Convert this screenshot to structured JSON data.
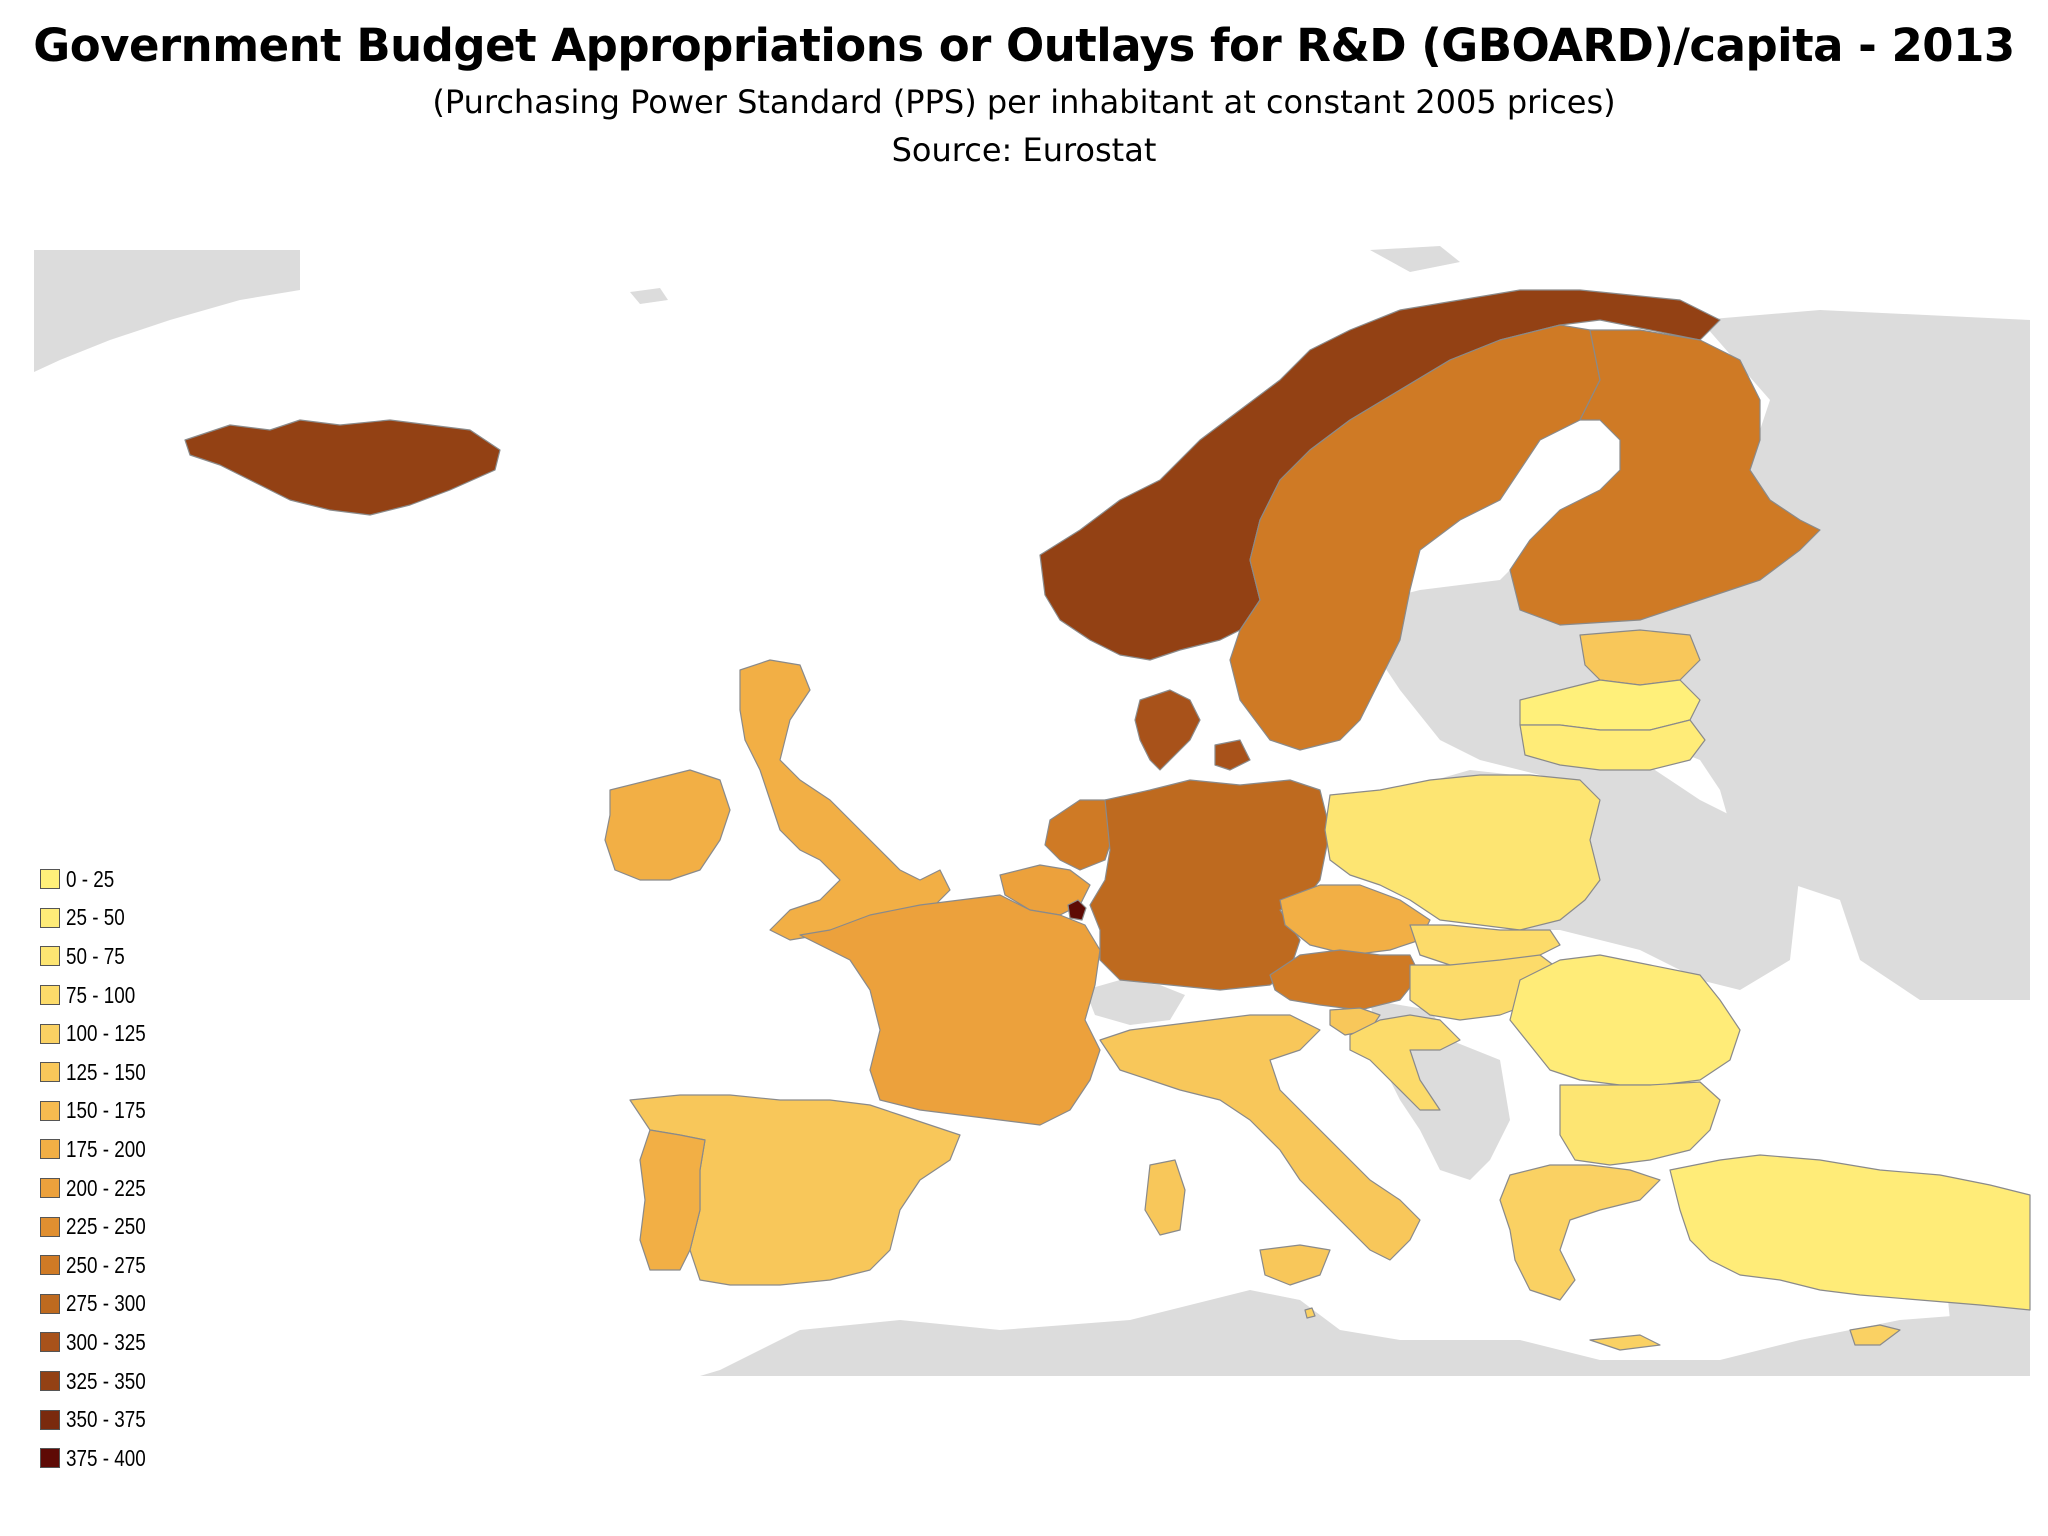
{
  "title": "Government Budget Appropriations or Outlays for R&D (GBOARD)/capita - 2013",
  "subtitle": "(Purchasing Power Standard (PPS) per inhabitant at constant 2005 prices)",
  "source": "Source: Eurostat",
  "colors": {
    "no_data": "#dcdcdc",
    "sea": "#ffffff",
    "border": "#8a8a8a"
  },
  "legend": [
    {
      "label": "0 - 25",
      "color": "#fff07a"
    },
    {
      "label": "25 - 50",
      "color": "#ffec78"
    },
    {
      "label": "50 - 75",
      "color": "#fde572"
    },
    {
      "label": "75 - 100",
      "color": "#fcdb6a"
    },
    {
      "label": "100 - 125",
      "color": "#fad163"
    },
    {
      "label": "125 - 150",
      "color": "#f8c75a"
    },
    {
      "label": "150 - 175",
      "color": "#f6bb50"
    },
    {
      "label": "175 - 200",
      "color": "#f2af45"
    },
    {
      "label": "200 - 225",
      "color": "#eca13c"
    },
    {
      "label": "225 - 250",
      "color": "#e08f30"
    },
    {
      "label": "250 - 275",
      "color": "#cf7a25"
    },
    {
      "label": "275 - 300",
      "color": "#be6a1f"
    },
    {
      "label": "300 - 325",
      "color": "#a8521a"
    },
    {
      "label": "325 - 350",
      "color": "#934114"
    },
    {
      "label": "350 - 375",
      "color": "#7a2a0e"
    },
    {
      "label": "375 - 400",
      "color": "#5e0a05"
    }
  ],
  "countries": [
    {
      "name": "Iceland",
      "class": "325 - 350"
    },
    {
      "name": "Norway",
      "class": "325 - 350"
    },
    {
      "name": "Sweden",
      "class": "250 - 275"
    },
    {
      "name": "Finland",
      "class": "250 - 275"
    },
    {
      "name": "Denmark",
      "class": "300 - 325"
    },
    {
      "name": "Estonia",
      "class": "125 - 150"
    },
    {
      "name": "Latvia",
      "class": "0 - 25"
    },
    {
      "name": "Lithuania",
      "class": "25 - 50"
    },
    {
      "name": "United Kingdom",
      "class": "175 - 200"
    },
    {
      "name": "Ireland",
      "class": "175 - 200"
    },
    {
      "name": "Netherlands",
      "class": "250 - 275"
    },
    {
      "name": "Belgium",
      "class": "200 - 225"
    },
    {
      "name": "Luxembourg",
      "class": "375 - 400"
    },
    {
      "name": "Germany",
      "class": "275 - 300"
    },
    {
      "name": "France",
      "class": "200 - 225"
    },
    {
      "name": "Poland",
      "class": "50 - 75"
    },
    {
      "name": "Czech Republic",
      "class": "175 - 200"
    },
    {
      "name": "Slovakia",
      "class": "75 - 100"
    },
    {
      "name": "Austria",
      "class": "250 - 275"
    },
    {
      "name": "Hungary",
      "class": "75 - 100"
    },
    {
      "name": "Slovenia",
      "class": "125 - 150"
    },
    {
      "name": "Croatia",
      "class": "75 - 100"
    },
    {
      "name": "Romania",
      "class": "25 - 50"
    },
    {
      "name": "Bulgaria",
      "class": "50 - 75"
    },
    {
      "name": "Greece",
      "class": "100 - 125"
    },
    {
      "name": "Turkey",
      "class": "25 - 50"
    },
    {
      "name": "Cyprus",
      "class": "100 - 125"
    },
    {
      "name": "Italy",
      "class": "125 - 150"
    },
    {
      "name": "Spain",
      "class": "125 - 150"
    },
    {
      "name": "Portugal",
      "class": "175 - 200"
    },
    {
      "name": "Malta",
      "class": "100 - 125"
    }
  ]
}
